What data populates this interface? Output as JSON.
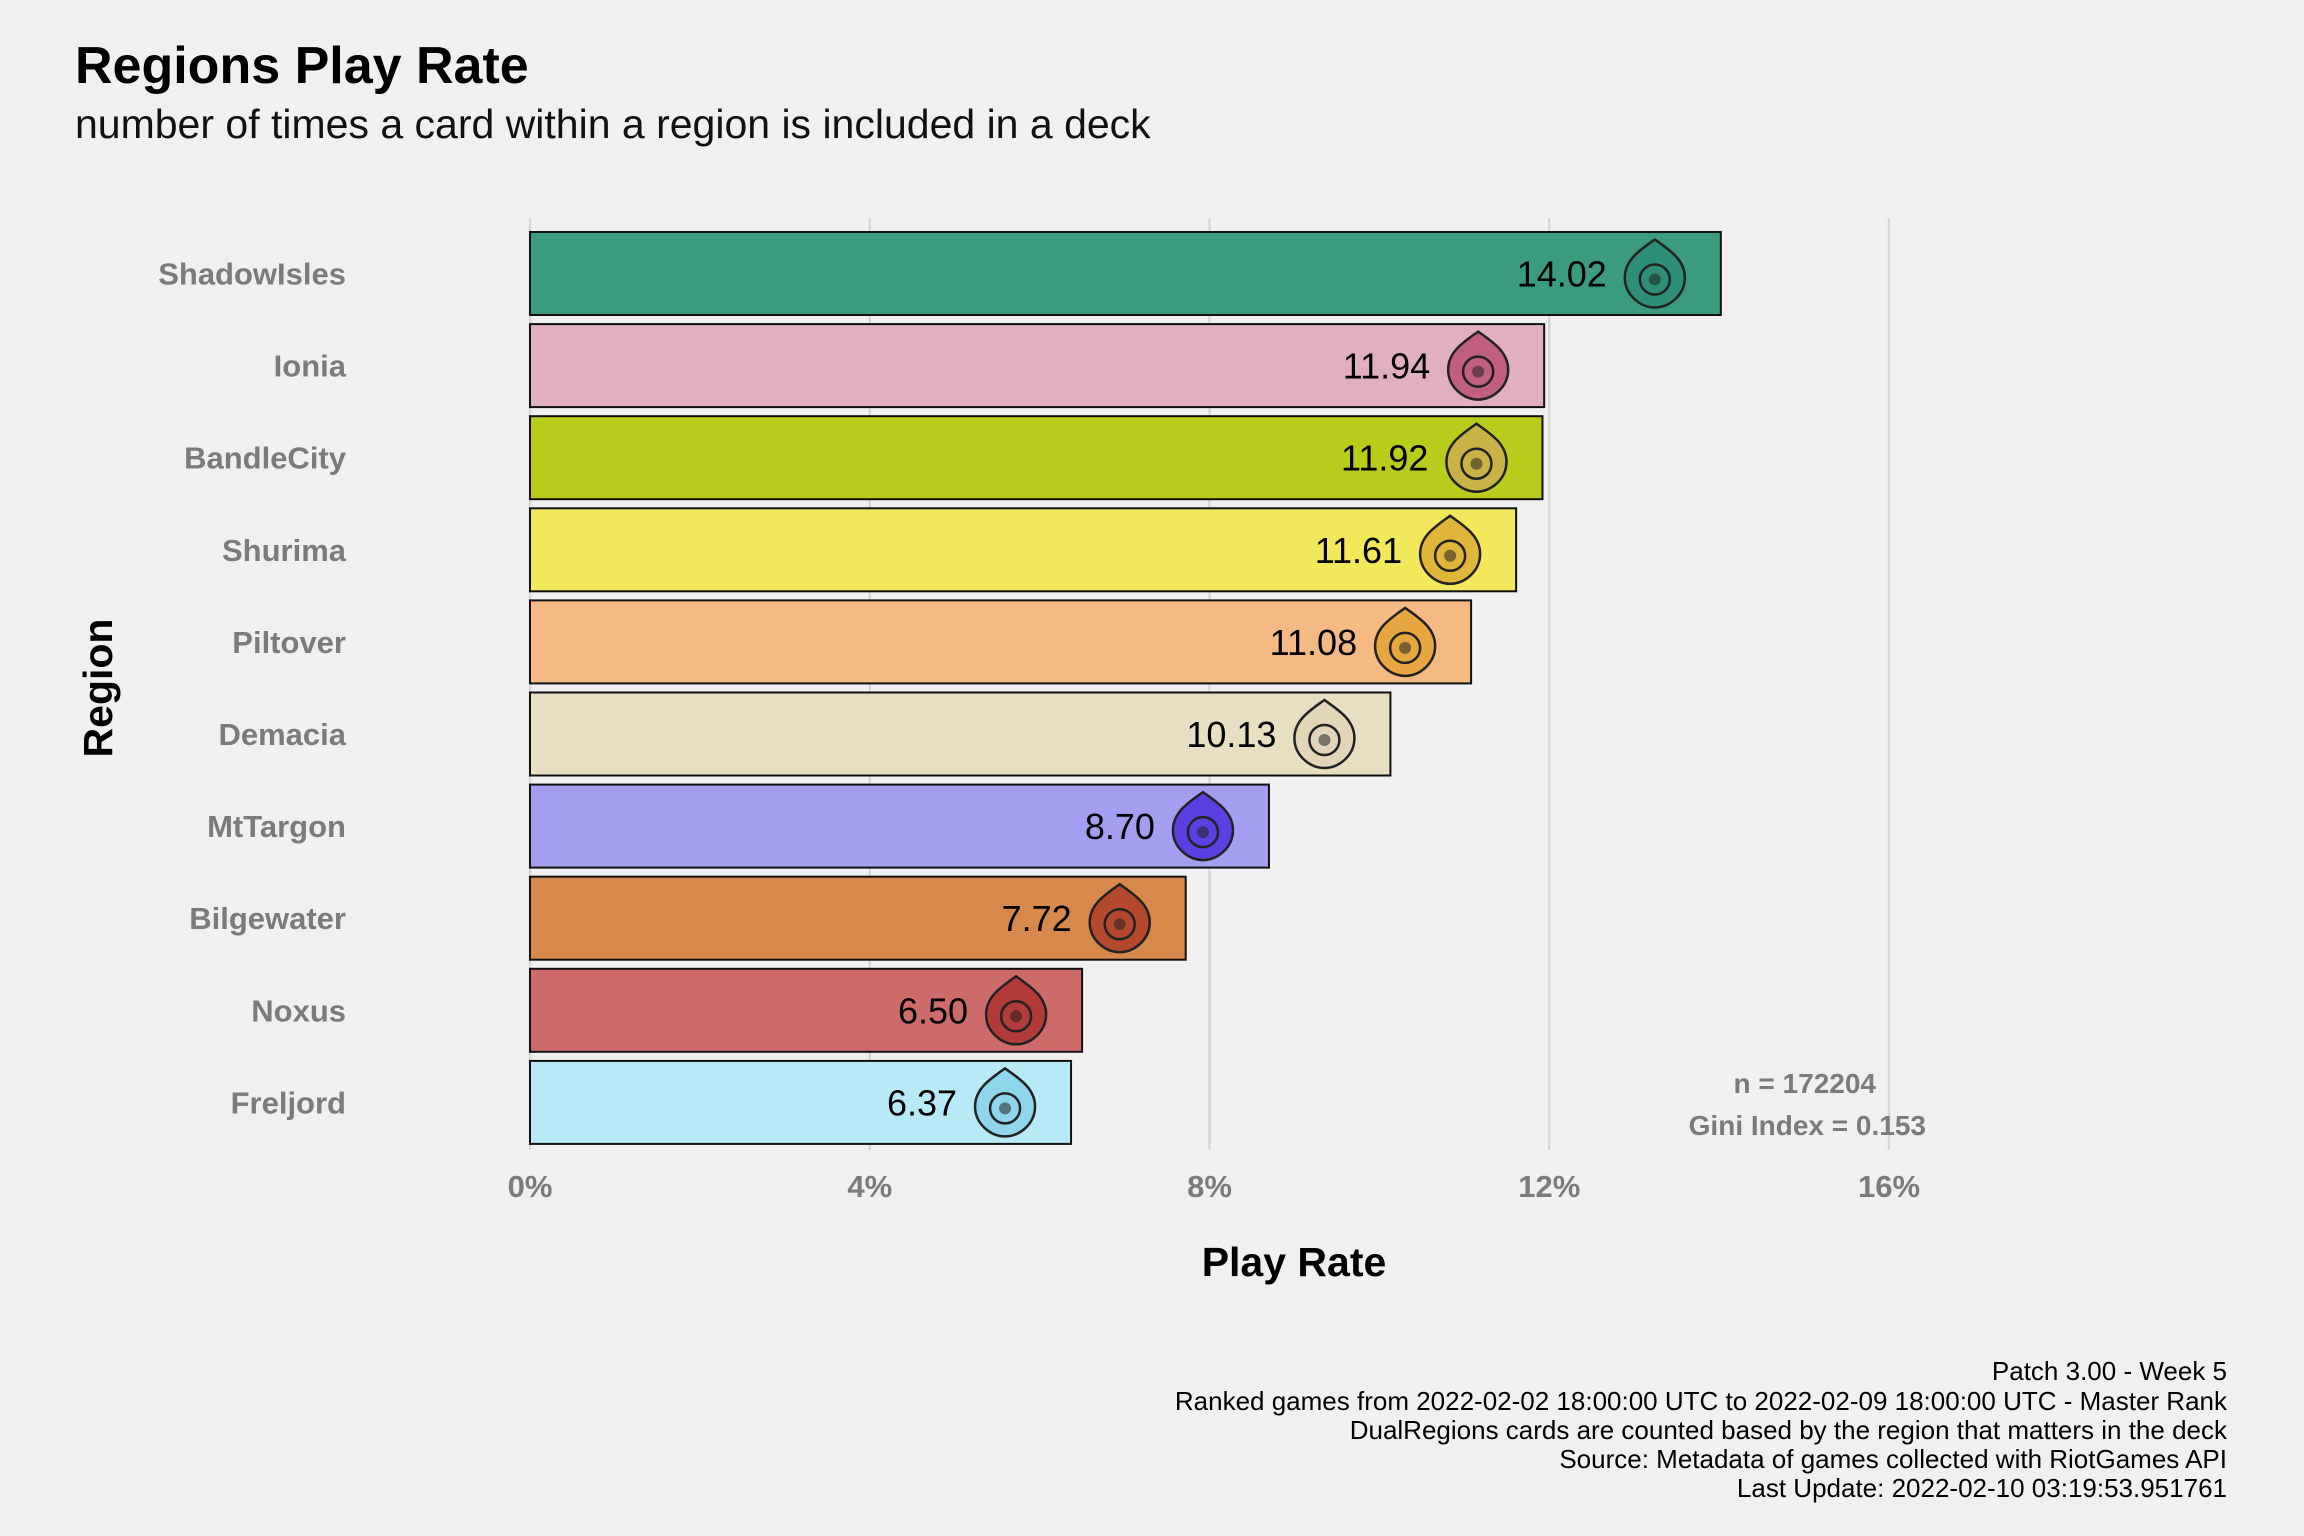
{
  "chart_data": {
    "type": "bar",
    "orientation": "horizontal",
    "title": "Regions Play Rate",
    "subtitle": "number of times a card within a region is included in a deck",
    "xlabel": "Play Rate",
    "ylabel": "Region",
    "xlim": [
      0,
      16
    ],
    "xticks": [
      0,
      4,
      8,
      12,
      16
    ],
    "xtick_labels": [
      "0%",
      "4%",
      "8%",
      "12%",
      "16%"
    ],
    "grid": "vertical major lines",
    "categories": [
      "ShadowIsles",
      "Ionia",
      "BandleCity",
      "Shurima",
      "Piltover",
      "Demacia",
      "MtTargon",
      "Bilgewater",
      "Noxus",
      "Freljord"
    ],
    "values": [
      14.02,
      11.94,
      11.92,
      11.61,
      11.08,
      10.13,
      8.7,
      7.72,
      6.5,
      6.37
    ],
    "value_labels": [
      "14.02",
      "11.94",
      "11.92",
      "11.61",
      "11.08",
      "10.13",
      "8.70",
      "7.72",
      "6.50",
      "6.37"
    ],
    "colors": [
      "#3a9b7e",
      "#e0b0c2",
      "#b9cc1c",
      "#f2e85c",
      "#f5b983",
      "#e8dec1",
      "#a39ef0",
      "#d6894b",
      "#cd6b6b",
      "#b8e9f7"
    ],
    "icon_colors": [
      "#2e8f78",
      "#c0607e",
      "#c9b347",
      "#e0b63a",
      "#e8a640",
      "#e3d6b8",
      "#5b3fe0",
      "#b5492e",
      "#b33a3a",
      "#8fd6ea"
    ],
    "icons": [
      "shadowisles-icon",
      "ionia-icon",
      "bandlecity-icon",
      "shurima-icon",
      "piltover-icon",
      "demacia-icon",
      "mttargon-icon",
      "bilgewater-icon",
      "noxus-icon",
      "freljord-icon"
    ],
    "annotations": [
      "n = 172204",
      "Gini Index = 0.153"
    ]
  },
  "caption": [
    "Patch 3.00 - Week 5",
    "Ranked games from 2022-02-02 18:00:00 UTC to 2022-02-09 18:00:00 UTC - Master Rank",
    "DualRegions cards are counted based by the region that matters in the deck",
    "Source: Metadata of games collected with RiotGames API",
    "Last Update: 2022-02-10 03:19:53.951761"
  ]
}
